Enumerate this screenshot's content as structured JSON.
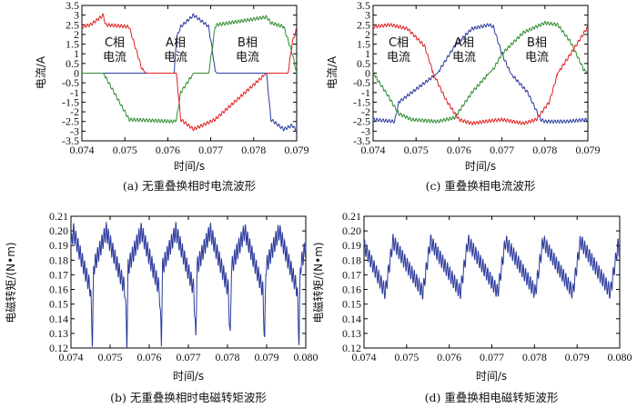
{
  "captions": {
    "a": "(a) 无重叠换相时电流波形",
    "c": "(c) 重叠换相电流波形",
    "b": "(b) 无重叠换相时电磁转矩波形",
    "d": "(d) 重叠换相电磁转矩波形"
  },
  "labels": {
    "time": "时间/s",
    "current": "电流/A",
    "torque": "电磁转矩/(N•m)",
    "phase_c": "C相",
    "phase_a": "A相",
    "phase_b": "B相",
    "current_word": "电流"
  },
  "colors": {
    "phase_a": "#2b3a9c",
    "phase_b": "#2e8b2e",
    "phase_c": "#e02020",
    "torque": "#2b3a9c"
  },
  "chart_data": [
    {
      "id": "a",
      "type": "line",
      "xlabel": "时间/s",
      "ylabel": "电流/A",
      "xlim": [
        0.074,
        0.079
      ],
      "ylim": [
        -3.5,
        3.5
      ],
      "xticks": [
        "0.074",
        "0.075",
        "0.076",
        "0.077",
        "0.078",
        "0.079"
      ],
      "yticks": [
        "3.5",
        "3",
        "2.5",
        "2",
        "1.5",
        "1",
        "0.5",
        "0",
        "-0.5",
        "-1",
        "-1.5",
        "-2",
        "-2.5",
        "-3",
        "-3.5"
      ],
      "series": [
        {
          "name": "A相",
          "color": "#2b3a9c",
          "x": [
            0.074,
            0.0745,
            0.07455,
            0.0751,
            0.07615,
            0.0762,
            0.0763,
            0.0766,
            0.0769,
            0.07695,
            0.07705,
            0.0771,
            0.07715,
            0.0783,
            0.0784,
            0.0787,
            0.0789,
            0.079
          ],
          "y": [
            0,
            0,
            0,
            0,
            0,
            1.8,
            2.4,
            3.0,
            2.5,
            2.4,
            1.0,
            0.1,
            0,
            0,
            -2.4,
            -2.9,
            -2.7,
            -3.0
          ]
        },
        {
          "name": "B相",
          "color": "#2e8b2e",
          "x": [
            0.074,
            0.0745,
            0.07455,
            0.0751,
            0.07615,
            0.0762,
            0.0763,
            0.0766,
            0.0769,
            0.07695,
            0.07705,
            0.0771,
            0.07715,
            0.0783,
            0.0784,
            0.0787,
            0.0789,
            0.079
          ],
          "y": [
            0,
            0,
            -0.2,
            -2.4,
            -2.5,
            -2.4,
            -1.0,
            0,
            0,
            0,
            1.5,
            2.4,
            2.5,
            2.9,
            2.6,
            2.4,
            1.0,
            0
          ]
        },
        {
          "name": "C相",
          "color": "#e02020",
          "x": [
            0.074,
            0.0742,
            0.0745,
            0.07455,
            0.0751,
            0.0754,
            0.0755,
            0.0762,
            0.0763,
            0.0766,
            0.0769,
            0.077,
            0.0771,
            0.0783,
            0.0787,
            0.0788,
            0.0789,
            0.079
          ],
          "y": [
            2.4,
            2.5,
            3.0,
            2.5,
            2.4,
            0.2,
            0,
            0,
            -2.4,
            -2.9,
            -2.6,
            -2.5,
            -2.4,
            0,
            0,
            0,
            1.6,
            2.3
          ]
        }
      ],
      "torque": false
    },
    {
      "id": "c",
      "type": "line",
      "xlabel": "时间/s",
      "ylabel": "电流/A",
      "xlim": [
        0.074,
        0.079
      ],
      "ylim": [
        -3.5,
        3.5
      ],
      "xticks": [
        "0.074",
        "0.075",
        "0.076",
        "0.077",
        "0.078",
        "0.079"
      ],
      "yticks": [
        "3.5",
        "3",
        "2.5",
        "2",
        "1.5",
        "1",
        "0.5",
        "0",
        "-0.5",
        "-1",
        "-1.5",
        "-2",
        "-2.5",
        "-3",
        "-3.5"
      ],
      "series": [
        {
          "name": "A相",
          "color": "#2b3a9c",
          "x": [
            0.074,
            0.0745,
            0.0746,
            0.0755,
            0.0759,
            0.0763,
            0.0767,
            0.0768,
            0.077,
            0.0772,
            0.0776,
            0.0779,
            0.078,
            0.0785,
            0.079
          ],
          "y": [
            -2.4,
            -2.5,
            -1.5,
            0,
            1.4,
            2.3,
            2.5,
            2.4,
            1.0,
            0,
            -1.0,
            -2.4,
            -2.5,
            -2.5,
            -2.4
          ]
        },
        {
          "name": "B相",
          "color": "#2e8b2e",
          "x": [
            0.074,
            0.0743,
            0.0746,
            0.0749,
            0.0755,
            0.0759,
            0.0763,
            0.0767,
            0.0768,
            0.077,
            0.0775,
            0.0778,
            0.078,
            0.0783,
            0.0786,
            0.0789,
            0.079
          ],
          "y": [
            0,
            -1.0,
            -2.1,
            -2.4,
            -2.5,
            -2.3,
            -1.0,
            0,
            0.2,
            1.0,
            2.1,
            2.4,
            2.6,
            2.5,
            1.6,
            0.2,
            0
          ]
        },
        {
          "name": "C相",
          "color": "#e02020",
          "x": [
            0.074,
            0.0744,
            0.0748,
            0.0752,
            0.0754,
            0.0757,
            0.076,
            0.0763,
            0.0766,
            0.077,
            0.0775,
            0.0778,
            0.0781,
            0.0783,
            0.0786,
            0.079
          ],
          "y": [
            2.4,
            2.5,
            2.3,
            1.4,
            0,
            -1.4,
            -2.4,
            -2.6,
            -2.5,
            -2.4,
            -2.6,
            -2.4,
            -1.5,
            0,
            1.0,
            2.4
          ]
        }
      ],
      "torque": false
    },
    {
      "id": "b",
      "type": "line",
      "xlabel": "时间/s",
      "ylabel": "电磁转矩/(N•m)",
      "xlim": [
        0.074,
        0.08
      ],
      "ylim": [
        0.12,
        0.21
      ],
      "xticks": [
        "0.074",
        "0.075",
        "0.076",
        "0.077",
        "0.078",
        "0.079",
        "0.080"
      ],
      "yticks": [
        "0.21",
        "0.20",
        "0.19",
        "0.18",
        "0.17",
        "0.16",
        "0.15",
        "0.14",
        "0.13",
        "0.12"
      ],
      "series": [
        {
          "name": "",
          "color": "#2b3a9c",
          "x": [
            0.074,
            0.07406,
            0.0745,
            0.07455,
            0.07458,
            0.0749,
            0.07538,
            0.07543,
            0.07546,
            0.0758,
            0.07626,
            0.07631,
            0.07634,
            0.07668,
            0.07714,
            0.07719,
            0.07722,
            0.07756,
            0.07802,
            0.07807,
            0.0781,
            0.07844,
            0.0789,
            0.07895,
            0.07898,
            0.07932,
            0.07978,
            0.07983,
            0.07986,
            0.08
          ],
          "y": [
            0.19,
            0.2,
            0.16,
            0.124,
            0.175,
            0.2,
            0.16,
            0.124,
            0.175,
            0.2,
            0.16,
            0.124,
            0.175,
            0.2,
            0.16,
            0.124,
            0.175,
            0.2,
            0.16,
            0.124,
            0.175,
            0.2,
            0.16,
            0.124,
            0.175,
            0.2,
            0.16,
            0.124,
            0.175,
            0.19
          ]
        }
      ],
      "torque": true
    },
    {
      "id": "d",
      "type": "line",
      "xlabel": "时间/s",
      "ylabel": "电磁转矩/(N•m)",
      "xlim": [
        0.074,
        0.08
      ],
      "ylim": [
        0.12,
        0.21
      ],
      "xticks": [
        "0.074",
        "0.075",
        "0.076",
        "0.077",
        "0.078",
        "0.079",
        "0.080"
      ],
      "yticks": [
        "0.21",
        "0.20",
        "0.19",
        "0.18",
        "0.17",
        "0.16",
        "0.15",
        "0.14",
        "0.13",
        "0.12"
      ],
      "series": [
        {
          "name": "",
          "color": "#2b3a9c",
          "x": [
            0.074,
            0.0745,
            0.07468,
            0.07538,
            0.07556,
            0.07626,
            0.07644,
            0.07714,
            0.07732,
            0.07802,
            0.0782,
            0.0789,
            0.07908,
            0.07978,
            0.07996,
            0.08
          ],
          "y": [
            0.19,
            0.158,
            0.193,
            0.158,
            0.193,
            0.158,
            0.193,
            0.158,
            0.193,
            0.158,
            0.193,
            0.158,
            0.193,
            0.158,
            0.19,
            0.186
          ]
        }
      ],
      "torque": true
    }
  ]
}
